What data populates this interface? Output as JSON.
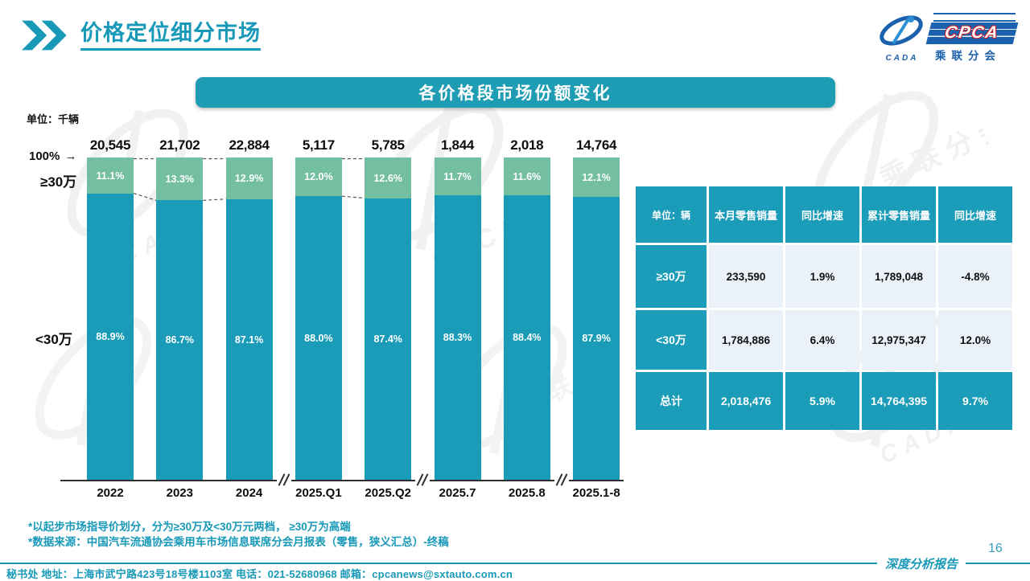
{
  "header": {
    "title": "价格定位细分市场"
  },
  "logo": {
    "cpca": "CPCA",
    "sub": "乘联分会",
    "cada": "CADA"
  },
  "banner": {
    "title": "各价格段市场份额变化"
  },
  "chart": {
    "unit_label": "单位：千辆",
    "axis_top_label": "100%"
  },
  "chart_data": {
    "type": "bar",
    "stacked_percent": true,
    "title": "各价格段市场份额变化",
    "unit": "千辆",
    "categories": [
      "2022",
      "2023",
      "2024",
      "2025.Q1",
      "2025.Q2",
      "2025.7",
      "2025.8",
      "2025.1-8"
    ],
    "totals_label": [
      "20,545",
      "21,702",
      "22,884",
      "5,117",
      "5,785",
      "1,844",
      "2,018",
      "14,764"
    ],
    "series": [
      {
        "name": "≥30万",
        "color": "#74bfa1",
        "values": [
          11.1,
          13.3,
          12.9,
          12.0,
          12.6,
          11.7,
          11.6,
          12.1
        ]
      },
      {
        "name": "<30万",
        "color": "#1a9cb8",
        "values": [
          88.9,
          86.7,
          87.1,
          88.0,
          87.4,
          88.3,
          88.4,
          87.9
        ]
      }
    ],
    "connected_pairs": [
      [
        0,
        1
      ],
      [
        1,
        2
      ],
      [
        3,
        4
      ]
    ],
    "axis_breaks_after": [
      2,
      4,
      6
    ],
    "ylim": [
      0,
      100
    ],
    "grid": false,
    "legend_position": "left"
  },
  "table": {
    "unit_header": "单位：辆",
    "headers": [
      "本月零售销量",
      "同比增速",
      "累计零售销量",
      "同比增速"
    ],
    "rows": [
      {
        "label": "≥30万",
        "cells": [
          "233,590",
          "1.9%",
          "1,789,048",
          "-4.8%"
        ],
        "highlight": false
      },
      {
        "label": "<30万",
        "cells": [
          "1,784,886",
          "6.4%",
          "12,975,347",
          "12.0%"
        ],
        "highlight": false
      },
      {
        "label": "总计",
        "cells": [
          "2,018,476",
          "5.9%",
          "14,764,395",
          "9.7%"
        ],
        "highlight": true
      }
    ]
  },
  "notes": [
    "*以起步市场指导价划分，分为≥30万及<30万元两档， ≥30万为高端",
    "*数据来源：中国汽车流通协会乘用车市场信息联席分会月报表（零售，狭义汇总）-终稿"
  ],
  "footer": {
    "contact": "秘书处  地址：上海市武宁路423号18号楼1103室 电话：021-52680968  邮箱：cpcanews@sxtauto.com.cn",
    "report_label": "深度分析报告",
    "page_number": "16"
  },
  "colors": {
    "accent": "#1a9cb8",
    "green": "#74bfa1",
    "table_cell_bg": "#eaf1f8",
    "dark_blue": "#1b61ad"
  }
}
